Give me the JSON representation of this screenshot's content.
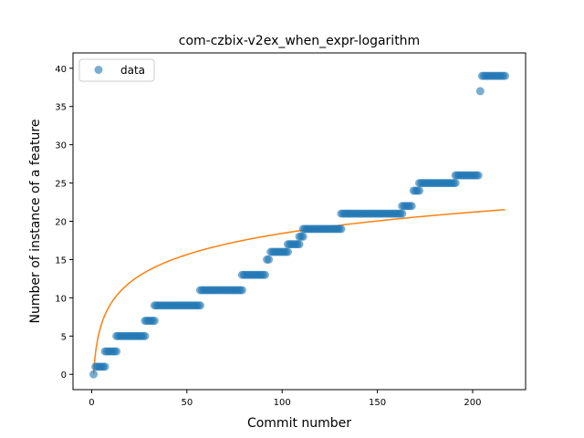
{
  "chart_data": {
    "type": "scatter",
    "title": "com-czbix-v2ex_when_expr-logarithm",
    "xlabel": "Commit number",
    "ylabel": "Number of instance of a feature",
    "xlim": [
      -9.8,
      227.8
    ],
    "ylim": [
      -2,
      42
    ],
    "xticks": [
      0,
      50,
      100,
      150,
      200
    ],
    "yticks": [
      0,
      5,
      10,
      15,
      20,
      25,
      30,
      35,
      40
    ],
    "grid": false,
    "legend": {
      "placement": "top-left",
      "entries": [
        "data"
      ]
    },
    "colors": {
      "points": "#1f77b4",
      "fit": "#ff7f0e"
    },
    "series": [
      {
        "name": "data",
        "kind": "scatter",
        "segments": [
          {
            "from": 1,
            "to": 1,
            "y": 0
          },
          {
            "from": 2,
            "to": 7,
            "y": 1
          },
          {
            "from": 7,
            "to": 13,
            "y": 3
          },
          {
            "from": 13,
            "to": 28,
            "y": 5
          },
          {
            "from": 28,
            "to": 33,
            "y": 7
          },
          {
            "from": 33,
            "to": 57,
            "y": 9
          },
          {
            "from": 57,
            "to": 79,
            "y": 11
          },
          {
            "from": 79,
            "to": 91,
            "y": 13
          },
          {
            "from": 92,
            "to": 93,
            "y": 15
          },
          {
            "from": 94,
            "to": 103,
            "y": 16
          },
          {
            "from": 103,
            "to": 109,
            "y": 17
          },
          {
            "from": 109,
            "to": 111,
            "y": 18
          },
          {
            "from": 111,
            "to": 131,
            "y": 19
          },
          {
            "from": 131,
            "to": 163,
            "y": 21
          },
          {
            "from": 163,
            "to": 168,
            "y": 22
          },
          {
            "from": 169,
            "to": 172,
            "y": 24
          },
          {
            "from": 172,
            "to": 191,
            "y": 25
          },
          {
            "from": 191,
            "to": 203,
            "y": 26
          },
          {
            "from": 204,
            "to": 204,
            "y": 37
          },
          {
            "from": 205,
            "to": 217,
            "y": 39
          }
        ]
      },
      {
        "name": "",
        "kind": "line",
        "function": "y = 4.0 * ln(x)",
        "x_range": [
          1,
          217
        ]
      }
    ]
  }
}
